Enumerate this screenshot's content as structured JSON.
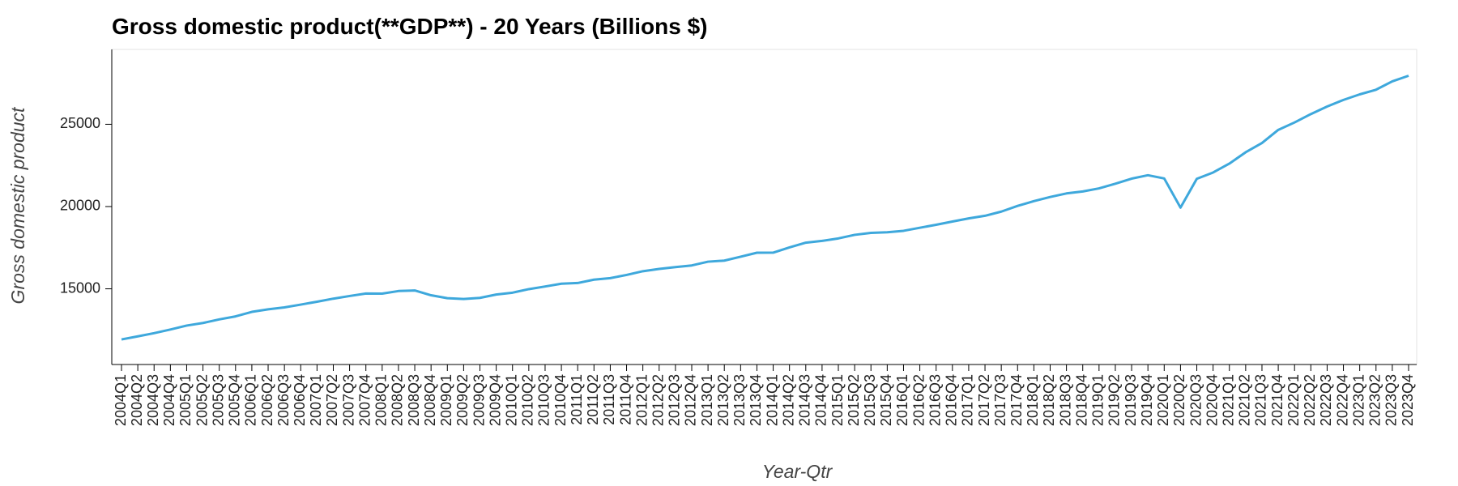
{
  "chart_data": {
    "type": "line",
    "title": "Gross domestic product(**GDP**) - 20 Years (Billions $)",
    "xlabel": "Year-Qtr",
    "ylabel": "Gross domestic product",
    "categories": [
      "2004Q1",
      "2004Q2",
      "2004Q3",
      "2004Q4",
      "2005Q1",
      "2005Q2",
      "2005Q3",
      "2005Q4",
      "2006Q1",
      "2006Q2",
      "2006Q3",
      "2006Q4",
      "2007Q1",
      "2007Q2",
      "2007Q3",
      "2007Q4",
      "2008Q1",
      "2008Q2",
      "2008Q3",
      "2008Q4",
      "2009Q1",
      "2009Q2",
      "2009Q3",
      "2009Q4",
      "2010Q1",
      "2010Q2",
      "2010Q3",
      "2010Q4",
      "2011Q1",
      "2011Q2",
      "2011Q3",
      "2011Q4",
      "2012Q1",
      "2012Q2",
      "2012Q3",
      "2012Q4",
      "2013Q1",
      "2013Q2",
      "2013Q3",
      "2013Q4",
      "2014Q1",
      "2014Q2",
      "2014Q3",
      "2014Q4",
      "2015Q1",
      "2015Q2",
      "2015Q3",
      "2015Q4",
      "2016Q1",
      "2016Q2",
      "2016Q3",
      "2016Q4",
      "2017Q1",
      "2017Q2",
      "2017Q3",
      "2017Q4",
      "2018Q1",
      "2018Q2",
      "2018Q3",
      "2018Q4",
      "2019Q1",
      "2019Q2",
      "2019Q3",
      "2019Q4",
      "2020Q1",
      "2020Q2",
      "2020Q3",
      "2020Q4",
      "2021Q1",
      "2021Q2",
      "2021Q3",
      "2021Q4",
      "2022Q1",
      "2022Q2",
      "2022Q3",
      "2022Q4",
      "2023Q1",
      "2023Q2",
      "2023Q3",
      "2023Q4"
    ],
    "values": [
      11923,
      12112,
      12305,
      12527,
      12767,
      12922,
      13142,
      13324,
      13599,
      13753,
      13870,
      14039,
      14216,
      14402,
      14564,
      14715,
      14707,
      14865,
      14899,
      14608,
      14430,
      14382,
      14449,
      14652,
      14765,
      14980,
      15142,
      15310,
      15351,
      15558,
      15648,
      15842,
      16069,
      16207,
      16319,
      16420,
      16649,
      16713,
      16950,
      17193,
      17198,
      17518,
      17805,
      17912,
      18063,
      18280,
      18401,
      18435,
      18525,
      18711,
      18892,
      19090,
      19280,
      19438,
      19692,
      20038,
      20328,
      20580,
      20798,
      20917,
      21104,
      21385,
      21694,
      21903,
      21707,
      19935,
      21685,
      22068,
      22610,
      23300,
      23860,
      24660,
      25110,
      25620,
      26080,
      26480,
      26818,
      27100,
      27610,
      27950
    ],
    "color": "#3ea8dc",
    "ylim": [
      10400,
      29550
    ],
    "yticks": [
      15000,
      20000,
      25000
    ]
  }
}
